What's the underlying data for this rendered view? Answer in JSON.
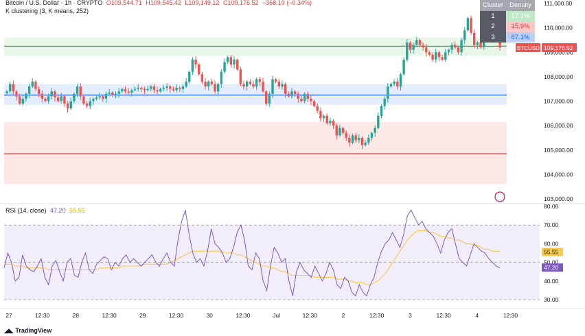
{
  "header": {
    "symbol": "Bitcoin / U.S. Dollar · 1h · CRYPTO",
    "o": "O109,544.71",
    "h": "H109,545.42",
    "l": "L109,149.12",
    "c": "C109,176.52",
    "chg": "−368.19 (−0.34%)",
    "indicator": "K clustering (3, K means, 252)"
  },
  "cluster_table": {
    "head": [
      "Cluster",
      "Density"
    ],
    "rows": [
      {
        "id": "1",
        "density": "17.1%"
      },
      {
        "id": "2",
        "density": "15.9%"
      },
      {
        "id": "3",
        "density": "67.1%"
      }
    ]
  },
  "price_tag": {
    "symbol": "BTCUSD",
    "value": "109,176.52"
  },
  "rsi_header": {
    "name": "RSI (14, close)",
    "rsi": "47.20",
    "ma": "55.55"
  },
  "rsi_tags": {
    "ma": "55.55",
    "rsi": "47.20"
  },
  "footer": {
    "logo": "TradingView"
  },
  "colors": {
    "up": "#26a69a",
    "down": "#ef5350",
    "rsi": "#7e57c2",
    "rsi_ma": "#f7c948",
    "green_line": "#43a047",
    "blue_line": "#2962ff",
    "red_line": "#e53935",
    "green_zone": "#e8f5e9",
    "blue_zone": "#e3edfd",
    "red_zone": "#fde8e8"
  },
  "chart_data": [
    {
      "type": "candlestick",
      "y_ticks": [
        "111,000.00",
        "110,000.00",
        "109,000.00",
        "108,000.00",
        "107,000.00",
        "106,000.00",
        "105,000.00",
        "104,000.00",
        "103,000.00"
      ],
      "ylim": [
        103000,
        111000
      ],
      "x_ticks": [
        "27",
        "12:30",
        "28",
        "12:30",
        "29",
        "12:30",
        "30",
        "12:30",
        "Jul",
        "12:30",
        "2",
        "12:30",
        "3",
        "12:30",
        "4",
        "12:30"
      ],
      "levels": [
        {
          "name": "cluster-high",
          "value": 109250,
          "zone": [
            108850,
            109600
          ]
        },
        {
          "name": "cluster-mid",
          "value": 107250,
          "zone": [
            106850,
            107700
          ]
        },
        {
          "name": "cluster-low",
          "value": 104850,
          "zone": [
            103600,
            106150
          ]
        }
      ],
      "closes": [
        107400,
        107700,
        107400,
        107200,
        106900,
        107100,
        107300,
        107600,
        107800,
        107500,
        107300,
        107100,
        107000,
        107200,
        107400,
        107150,
        107000,
        107200,
        106900,
        106700,
        107000,
        107300,
        107600,
        107200,
        106900,
        106800,
        107000,
        107100,
        107150,
        107200,
        107100,
        107300,
        107350,
        107250,
        107300,
        107400,
        107500,
        107400,
        107350,
        107450,
        107500,
        107550,
        107500,
        107450,
        107500,
        107600,
        107450,
        107400,
        107500,
        107550,
        107600,
        107500,
        107450,
        107550,
        107500,
        107600,
        107800,
        108200,
        108700,
        108500,
        108100,
        107800,
        107600,
        107800,
        107700,
        107400,
        107700,
        108200,
        108600,
        108800,
        108500,
        108700,
        108300,
        107700,
        107600,
        107800,
        107700,
        107600,
        107900,
        107800,
        107400,
        106900,
        107300,
        107900,
        107800,
        107600,
        107700,
        107300,
        107200,
        107400,
        107300,
        107100,
        107000,
        107300,
        107100,
        107000,
        106800,
        106600,
        106300,
        106400,
        106100,
        106200,
        106000,
        105600,
        105900,
        105700,
        105500,
        105300,
        105600,
        105400,
        105500,
        105200,
        105300,
        105500,
        105700,
        105900,
        106400,
        106800,
        107100,
        107600,
        107700,
        107800,
        107600,
        108100,
        108700,
        109400,
        109100,
        109300,
        109500,
        109300,
        109200,
        109000,
        108900,
        108700,
        109000,
        108800,
        108700,
        109000,
        109100,
        109300,
        109200,
        109000,
        109500,
        109900,
        110400,
        109800,
        109300,
        109400,
        109200,
        109600,
        109900,
        110300,
        109900,
        109700,
        109200
      ],
      "tag_value": "109,176.52"
    },
    {
      "type": "line",
      "name": "RSI (14, close)",
      "y_ticks": [
        "80.00",
        "70.00",
        "60.00",
        "50.00",
        "40.00",
        "30.00"
      ],
      "ylim": [
        30,
        80
      ],
      "bands": [
        30,
        50,
        70
      ],
      "series": [
        {
          "name": "RSI",
          "values": [
            47,
            55,
            50,
            40,
            42,
            54,
            48,
            46,
            45,
            48,
            52,
            42,
            38,
            48,
            51,
            45,
            40,
            50,
            52,
            43,
            42,
            50,
            55,
            46,
            44,
            49,
            51,
            53,
            52,
            46,
            50,
            48,
            52,
            54,
            50,
            52,
            50,
            48,
            50,
            52,
            54,
            50,
            48,
            52,
            55,
            50,
            48,
            62,
            72,
            78,
            65,
            55,
            50,
            52,
            48,
            56,
            68,
            60,
            58,
            55,
            50,
            52,
            58,
            66,
            70,
            62,
            48,
            46,
            55,
            52,
            40,
            35,
            48,
            58,
            55,
            50,
            52,
            40,
            32,
            45,
            50,
            46,
            44,
            42,
            48,
            44,
            40,
            44,
            50,
            46,
            38,
            36,
            42,
            40,
            34,
            32,
            38,
            34,
            32,
            38,
            42,
            50,
            56,
            60,
            62,
            66,
            62,
            58,
            65,
            75,
            78,
            74,
            70,
            72,
            68,
            66,
            64,
            60,
            55,
            62,
            66,
            68,
            60,
            52,
            50,
            48,
            54,
            60,
            58,
            56,
            55,
            52,
            50,
            48,
            47
          ]
        },
        {
          "name": "MA",
          "values": [
            49,
            49,
            49,
            48,
            48,
            48,
            47,
            47,
            47,
            47,
            47,
            47,
            46,
            46,
            46,
            46,
            46,
            46,
            46,
            46,
            46,
            46,
            46,
            46,
            46,
            46,
            47,
            47,
            47,
            47,
            47,
            47,
            48,
            48,
            48,
            48,
            48,
            48,
            49,
            49,
            49,
            49,
            49,
            49,
            49,
            50,
            51,
            52,
            53,
            54,
            55,
            56,
            56,
            56,
            56,
            56,
            56,
            56,
            56,
            55,
            55,
            55,
            55,
            54,
            54,
            53,
            52,
            51,
            50,
            49,
            48,
            48,
            47,
            47,
            46,
            45,
            45,
            44,
            43,
            43,
            43,
            43,
            43,
            43,
            42,
            42,
            42,
            42,
            42,
            42,
            41,
            41,
            41,
            40,
            40,
            39,
            39,
            39,
            38,
            38,
            39,
            40,
            42,
            44,
            47,
            50,
            53,
            56,
            59,
            62,
            64,
            66,
            67,
            67,
            67,
            66,
            66,
            65,
            64,
            64,
            63,
            63,
            62,
            62,
            61,
            60,
            60,
            59,
            59,
            58,
            57,
            57,
            56,
            56,
            56
          ]
        }
      ]
    }
  ]
}
